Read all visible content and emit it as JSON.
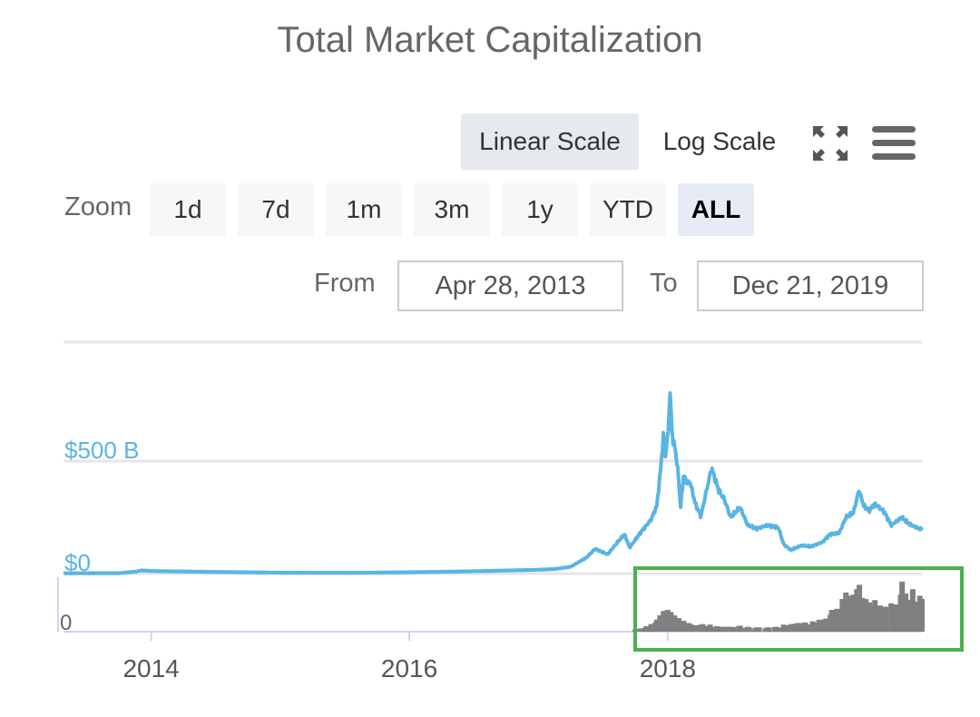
{
  "header": {
    "title": "Total Market Capitalization"
  },
  "toolbar": {
    "linear_label": "Linear Scale",
    "log_label": "Log Scale",
    "fullscreen_icon": "fullscreen-icon",
    "menu_icon": "hamburger-menu-icon"
  },
  "zoom": {
    "label": "Zoom",
    "buttons": [
      "1d",
      "7d",
      "1m",
      "3m",
      "1y",
      "YTD",
      "ALL"
    ],
    "active": "ALL"
  },
  "range": {
    "from_label": "From",
    "from_value": "Apr 28, 2013",
    "to_label": "To",
    "to_value": "Dec 21, 2019"
  },
  "colors": {
    "line": "#5ab4e3",
    "volume": "#808080",
    "grid": "#e6e6e6",
    "axis_label": "#5ab4e3",
    "highlight": "#4caf50"
  },
  "chart_data": {
    "type": "line",
    "title": "Total Market Capitalization",
    "xlabel": "",
    "ylabel": "",
    "y_tick_labels": [
      "$0",
      "$500 B"
    ],
    "y_ticks": [
      0,
      500
    ],
    "y_unit": "billion USD",
    "xlim": [
      "2013-04-28",
      "2019-12-21"
    ],
    "x_tick_labels": [
      "2014",
      "2016",
      "2018"
    ],
    "x_ticks": [
      "2014-01-01",
      "2016-01-01",
      "2018-01-01"
    ],
    "grid": true,
    "series": [
      {
        "values": [
          [
            "2013-04-28",
            1.5
          ],
          [
            "2013-10-01",
            2
          ],
          [
            "2013-11-20",
            9
          ],
          [
            "2013-12-05",
            14
          ],
          [
            "2014-01-15",
            11
          ],
          [
            "2014-06-01",
            8
          ],
          [
            "2015-01-01",
            4
          ],
          [
            "2015-08-01",
            3.5
          ],
          [
            "2016-01-01",
            6
          ],
          [
            "2016-06-15",
            10
          ],
          [
            "2016-12-31",
            17
          ],
          [
            "2017-02-15",
            20
          ],
          [
            "2017-04-01",
            30
          ],
          [
            "2017-05-15",
            70
          ],
          [
            "2017-06-10",
            110
          ],
          [
            "2017-07-15",
            85
          ],
          [
            "2017-08-15",
            145
          ],
          [
            "2017-09-01",
            175
          ],
          [
            "2017-09-15",
            115
          ],
          [
            "2017-10-15",
            180
          ],
          [
            "2017-11-15",
            240
          ],
          [
            "2017-12-01",
            300
          ],
          [
            "2017-12-10",
            430
          ],
          [
            "2017-12-20",
            610
          ],
          [
            "2017-12-25",
            520
          ],
          [
            "2018-01-02",
            620
          ],
          [
            "2018-01-07",
            815
          ],
          [
            "2018-01-15",
            590
          ],
          [
            "2018-01-22",
            560
          ],
          [
            "2018-02-01",
            420
          ],
          [
            "2018-02-06",
            290
          ],
          [
            "2018-02-15",
            440
          ],
          [
            "2018-02-25",
            400
          ],
          [
            "2018-03-05",
            410
          ],
          [
            "2018-03-20",
            310
          ],
          [
            "2018-04-05",
            255
          ],
          [
            "2018-04-25",
            400
          ],
          [
            "2018-05-05",
            470
          ],
          [
            "2018-05-25",
            370
          ],
          [
            "2018-06-10",
            330
          ],
          [
            "2018-06-28",
            250
          ],
          [
            "2018-07-25",
            295
          ],
          [
            "2018-08-15",
            215
          ],
          [
            "2018-09-10",
            200
          ],
          [
            "2018-10-10",
            215
          ],
          [
            "2018-11-10",
            205
          ],
          [
            "2018-11-25",
            130
          ],
          [
            "2018-12-15",
            105
          ],
          [
            "2019-01-15",
            125
          ],
          [
            "2019-02-10",
            120
          ],
          [
            "2019-03-15",
            140
          ],
          [
            "2019-04-05",
            175
          ],
          [
            "2019-05-01",
            180
          ],
          [
            "2019-05-20",
            250
          ],
          [
            "2019-06-10",
            270
          ],
          [
            "2019-06-26",
            370
          ],
          [
            "2019-07-10",
            300
          ],
          [
            "2019-07-25",
            280
          ],
          [
            "2019-08-10",
            310
          ],
          [
            "2019-09-05",
            275
          ],
          [
            "2019-09-25",
            215
          ],
          [
            "2019-10-25",
            250
          ],
          [
            "2019-11-15",
            220
          ],
          [
            "2019-12-05",
            205
          ],
          [
            "2019-12-21",
            195
          ]
        ]
      }
    ],
    "volume_series": {
      "type": "bar",
      "axis_label": "0",
      "values": [
        [
          "2017-10-01",
          4
        ],
        [
          "2017-10-15",
          6
        ],
        [
          "2017-11-01",
          10
        ],
        [
          "2017-11-15",
          14
        ],
        [
          "2017-12-01",
          22
        ],
        [
          "2017-12-10",
          30
        ],
        [
          "2017-12-20",
          38
        ],
        [
          "2018-01-01",
          40
        ],
        [
          "2018-01-10",
          36
        ],
        [
          "2018-01-20",
          30
        ],
        [
          "2018-02-01",
          25
        ],
        [
          "2018-02-15",
          20
        ],
        [
          "2018-03-01",
          16
        ],
        [
          "2018-03-20",
          12
        ],
        [
          "2018-04-10",
          14
        ],
        [
          "2018-05-01",
          13
        ],
        [
          "2018-05-20",
          10
        ],
        [
          "2018-06-10",
          9
        ],
        [
          "2018-07-01",
          9
        ],
        [
          "2018-07-25",
          11
        ],
        [
          "2018-08-15",
          9
        ],
        [
          "2018-09-10",
          8
        ],
        [
          "2018-10-10",
          8
        ],
        [
          "2018-11-05",
          9
        ],
        [
          "2018-11-25",
          13
        ],
        [
          "2018-12-15",
          14
        ],
        [
          "2019-01-05",
          16
        ],
        [
          "2019-01-25",
          17
        ],
        [
          "2019-02-15",
          19
        ],
        [
          "2019-03-05",
          22
        ],
        [
          "2019-03-25",
          24
        ],
        [
          "2019-04-10",
          40
        ],
        [
          "2019-04-25",
          42
        ],
        [
          "2019-05-10",
          60
        ],
        [
          "2019-05-20",
          72
        ],
        [
          "2019-05-28",
          66
        ],
        [
          "2019-06-10",
          68
        ],
        [
          "2019-06-20",
          78
        ],
        [
          "2019-06-27",
          86
        ],
        [
          "2019-07-05",
          62
        ],
        [
          "2019-07-15",
          60
        ],
        [
          "2019-07-25",
          54
        ],
        [
          "2019-08-10",
          58
        ],
        [
          "2019-08-25",
          48
        ],
        [
          "2019-09-10",
          46
        ],
        [
          "2019-09-25",
          52
        ],
        [
          "2019-10-10",
          50
        ],
        [
          "2019-10-26",
          92
        ],
        [
          "2019-11-05",
          70
        ],
        [
          "2019-11-15",
          58
        ],
        [
          "2019-11-25",
          78
        ],
        [
          "2019-12-05",
          55
        ],
        [
          "2019-12-15",
          66
        ],
        [
          "2019-12-21",
          60
        ]
      ]
    }
  }
}
